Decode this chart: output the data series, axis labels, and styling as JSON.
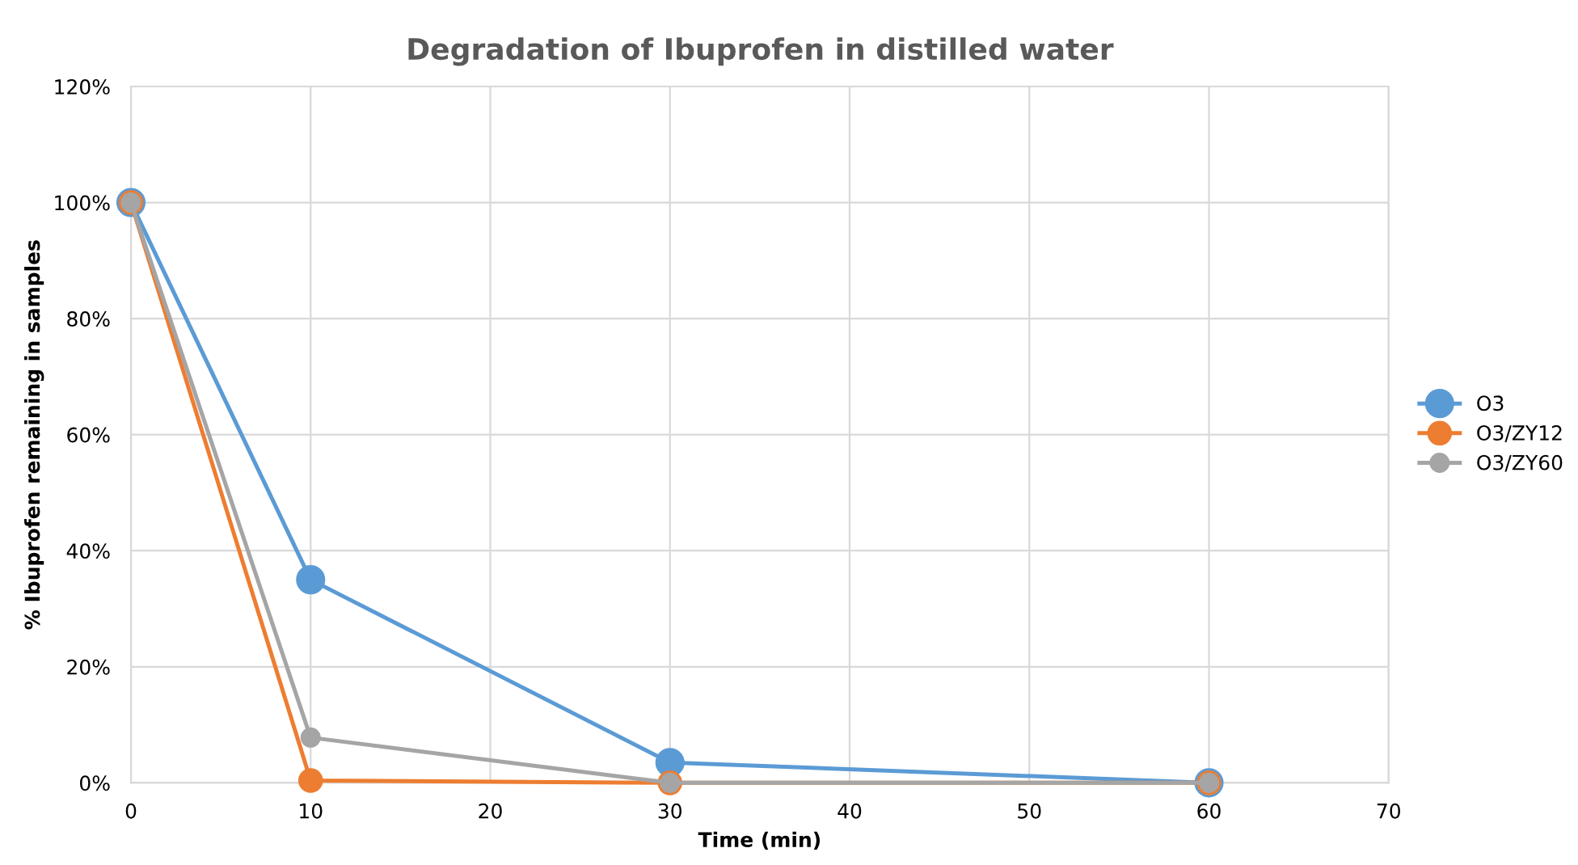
{
  "chart_data": {
    "type": "line",
    "title": "Degradation of Ibuprofen in distilled water",
    "xlabel": "Time (min)",
    "ylabel": "% Ibuprofen remaining in samples",
    "x": [
      0,
      10,
      30,
      60
    ],
    "series": [
      {
        "name": "O3",
        "color": "#5b9bd5",
        "values": [
          100,
          35,
          3.5,
          0
        ]
      },
      {
        "name": "O3/ZY12",
        "color": "#ed7d31",
        "values": [
          100,
          0.4,
          0,
          0
        ]
      },
      {
        "name": "O3/ZY60",
        "color": "#a5a5a5",
        "values": [
          100,
          7.8,
          0,
          0
        ]
      }
    ],
    "xlim": [
      0,
      70
    ],
    "xticks": [
      0,
      10,
      20,
      30,
      40,
      50,
      60,
      70
    ],
    "ylim": [
      0,
      120
    ],
    "yticks": [
      {
        "value": 0,
        "label": "0%"
      },
      {
        "value": 20,
        "label": "20%"
      },
      {
        "value": 40,
        "label": "40%"
      },
      {
        "value": 60,
        "label": "60%"
      },
      {
        "value": 80,
        "label": "80%"
      },
      {
        "value": 100,
        "label": "100%"
      },
      {
        "value": 120,
        "label": "120%"
      }
    ],
    "grid": true,
    "legend": "right",
    "marker": "circle",
    "line_style": "solid"
  }
}
